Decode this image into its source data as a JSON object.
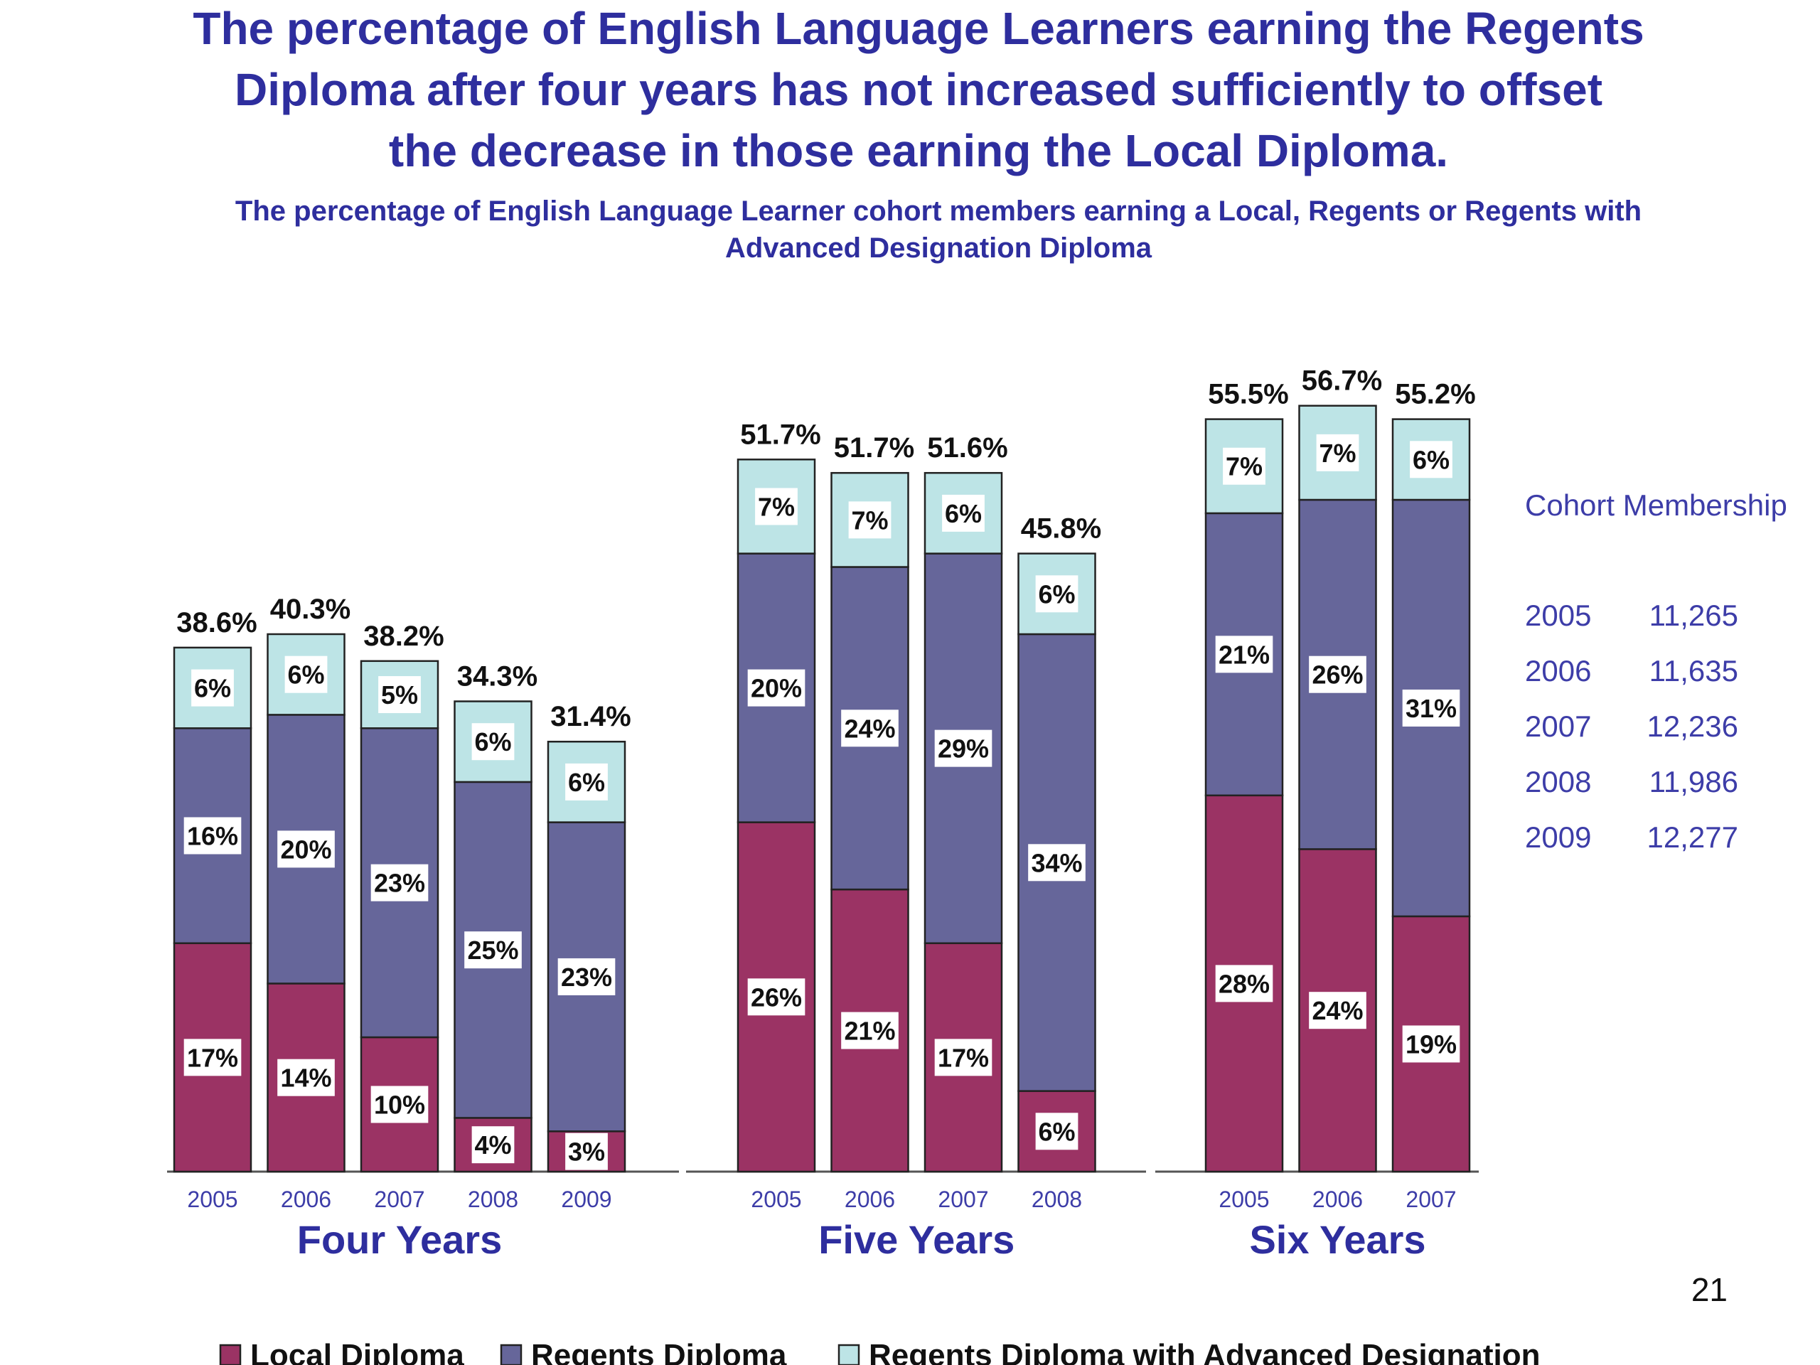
{
  "chart_data": {
    "type": "bar",
    "stacked": true,
    "title": "The percentage of English Language Learners earning the Regents Diploma after four years has not increased sufficiently to offset the decrease in those earning the Local Diploma.",
    "subtitle": "The percentage of English Language Learner cohort members earning a Local, Regents or Regents with Advanced Designation Diploma",
    "legend_position": "bottom",
    "series_names": [
      "Local Diploma",
      "Regents Diploma",
      "Regents Diploma with Advanced Designation"
    ],
    "colors": {
      "local": "#9b3364",
      "regents": "#66669a",
      "advanced": "#bde4e6",
      "title": "#2e2e9e",
      "label_blue": "#3d3da8"
    },
    "ylim": [
      0,
      100
    ],
    "groups": [
      {
        "label": "Four Years",
        "categories": [
          "2005",
          "2006",
          "2007",
          "2008",
          "2009"
        ],
        "local": [
          17,
          14,
          10,
          4,
          3
        ],
        "regents": [
          16,
          20,
          23,
          25,
          23
        ],
        "advanced": [
          6,
          6,
          5,
          6,
          6
        ],
        "totals": [
          "38.6%",
          "40.3%",
          "38.2%",
          "34.3%",
          "31.4%"
        ]
      },
      {
        "label": "Five Years",
        "categories": [
          "2005",
          "2006",
          "2007",
          "2008"
        ],
        "local": [
          26,
          21,
          17,
          6
        ],
        "regents": [
          20,
          24,
          29,
          34
        ],
        "advanced": [
          7,
          7,
          6,
          6
        ],
        "totals": [
          "51.7%",
          "51.7%",
          "51.6%",
          "45.8%"
        ]
      },
      {
        "label": "Six Years",
        "categories": [
          "2005",
          "2006",
          "2007"
        ],
        "local": [
          28,
          24,
          19
        ],
        "regents": [
          21,
          26,
          31
        ],
        "advanced": [
          7,
          7,
          6
        ],
        "totals": [
          "55.5%",
          "56.7%",
          "55.2%"
        ]
      }
    ],
    "cohort": {
      "heading": "Cohort Membership",
      "rows": [
        {
          "year": "2005",
          "count": "11,265"
        },
        {
          "year": "2006",
          "count": "11,635"
        },
        {
          "year": "2007",
          "count": "12,236"
        },
        {
          "year": "2008",
          "count": "11,986"
        },
        {
          "year": "2009",
          "count": "12,277"
        }
      ]
    },
    "page_number": "21"
  }
}
